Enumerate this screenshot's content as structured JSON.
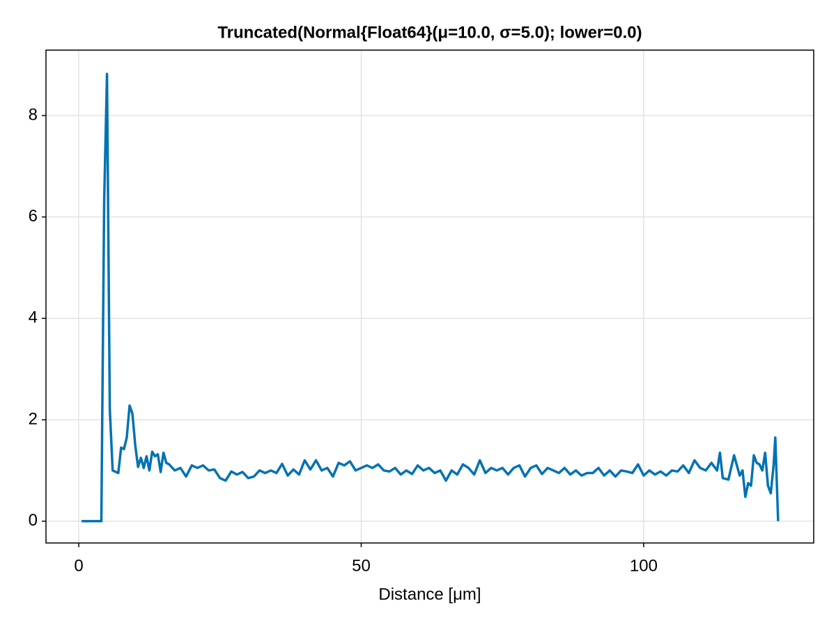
{
  "chart_data": {
    "type": "line",
    "title": "Truncated(Normal{Float64}(μ=10.0, σ=5.0); lower=0.0)",
    "x_label": "Distance [μm]",
    "xlim": [
      -5.8,
      130.1
    ],
    "xticks": [
      0,
      50,
      100
    ],
    "ylim": [
      -0.43,
      9.29
    ],
    "yticks": [
      0,
      2,
      4,
      6,
      8
    ],
    "grid": true,
    "series": [
      {
        "color": "#0072b2",
        "x": [
          0.5,
          4.0,
          4.5,
          5.0,
          5.5,
          6,
          7,
          7.5,
          8,
          8.5,
          9,
          9.5,
          10,
          10.5,
          11,
          11.5,
          12,
          12.5,
          13,
          13.5,
          14,
          14.5,
          15,
          15.5,
          16,
          17,
          18,
          19,
          20,
          21,
          22,
          23,
          24,
          25,
          26,
          27,
          28,
          29,
          30,
          31,
          32,
          33,
          34,
          35,
          36,
          37,
          38,
          39,
          40,
          41,
          42,
          43,
          44,
          45,
          46,
          47,
          48,
          49,
          50,
          51,
          52,
          53,
          54,
          55,
          56,
          57,
          58,
          59,
          60,
          61,
          62,
          63,
          64,
          65,
          66,
          67,
          68,
          69,
          70,
          71,
          72,
          73,
          74,
          75,
          76,
          77,
          78,
          79,
          80,
          81,
          82,
          83,
          84,
          85,
          86,
          87,
          88,
          89,
          90,
          91,
          92,
          93,
          94,
          95,
          96,
          97,
          98,
          99,
          100,
          101,
          102,
          103,
          104,
          105,
          106,
          107,
          108,
          109,
          110,
          111,
          112,
          113,
          113.5,
          114,
          115,
          116,
          117,
          117.5,
          118,
          118.5,
          119,
          119.5,
          120,
          120.5,
          121,
          121.5,
          122,
          122.5,
          123,
          123.3,
          123.8
        ],
        "values": [
          0,
          0,
          6.3,
          8.82,
          2.2,
          1.0,
          0.95,
          1.45,
          1.42,
          1.65,
          2.28,
          2.12,
          1.5,
          1.07,
          1.25,
          1.05,
          1.28,
          1.0,
          1.37,
          1.28,
          1.32,
          0.97,
          1.35,
          1.15,
          1.12,
          1.0,
          1.05,
          0.88,
          1.1,
          1.05,
          1.1,
          1.0,
          1.02,
          0.85,
          0.8,
          0.98,
          0.92,
          0.97,
          0.85,
          0.88,
          1.0,
          0.95,
          1.0,
          0.95,
          1.13,
          0.9,
          1.02,
          0.92,
          1.2,
          1.02,
          1.2,
          1.0,
          1.05,
          0.88,
          1.15,
          1.1,
          1.18,
          1.0,
          1.05,
          1.1,
          1.05,
          1.12,
          1.0,
          0.98,
          1.05,
          0.92,
          1.0,
          0.93,
          1.1,
          1.0,
          1.05,
          0.95,
          1.0,
          0.8,
          1.0,
          0.92,
          1.12,
          1.05,
          0.92,
          1.2,
          0.95,
          1.05,
          1.0,
          1.05,
          0.92,
          1.05,
          1.1,
          0.88,
          1.05,
          1.1,
          0.93,
          1.05,
          1.0,
          0.95,
          1.05,
          0.92,
          1.0,
          0.9,
          0.95,
          0.95,
          1.05,
          0.9,
          1.0,
          0.88,
          1.0,
          0.98,
          0.95,
          1.12,
          0.9,
          1.0,
          0.92,
          0.98,
          0.9,
          1.0,
          0.98,
          1.1,
          0.95,
          1.2,
          1.05,
          1.0,
          1.15,
          1.0,
          1.35,
          0.85,
          0.82,
          1.3,
          0.9,
          1.0,
          0.48,
          0.75,
          0.7,
          1.3,
          1.15,
          1.12,
          1.0,
          1.35,
          0.7,
          0.55,
          1.1,
          1.65,
          0
        ]
      }
    ]
  }
}
